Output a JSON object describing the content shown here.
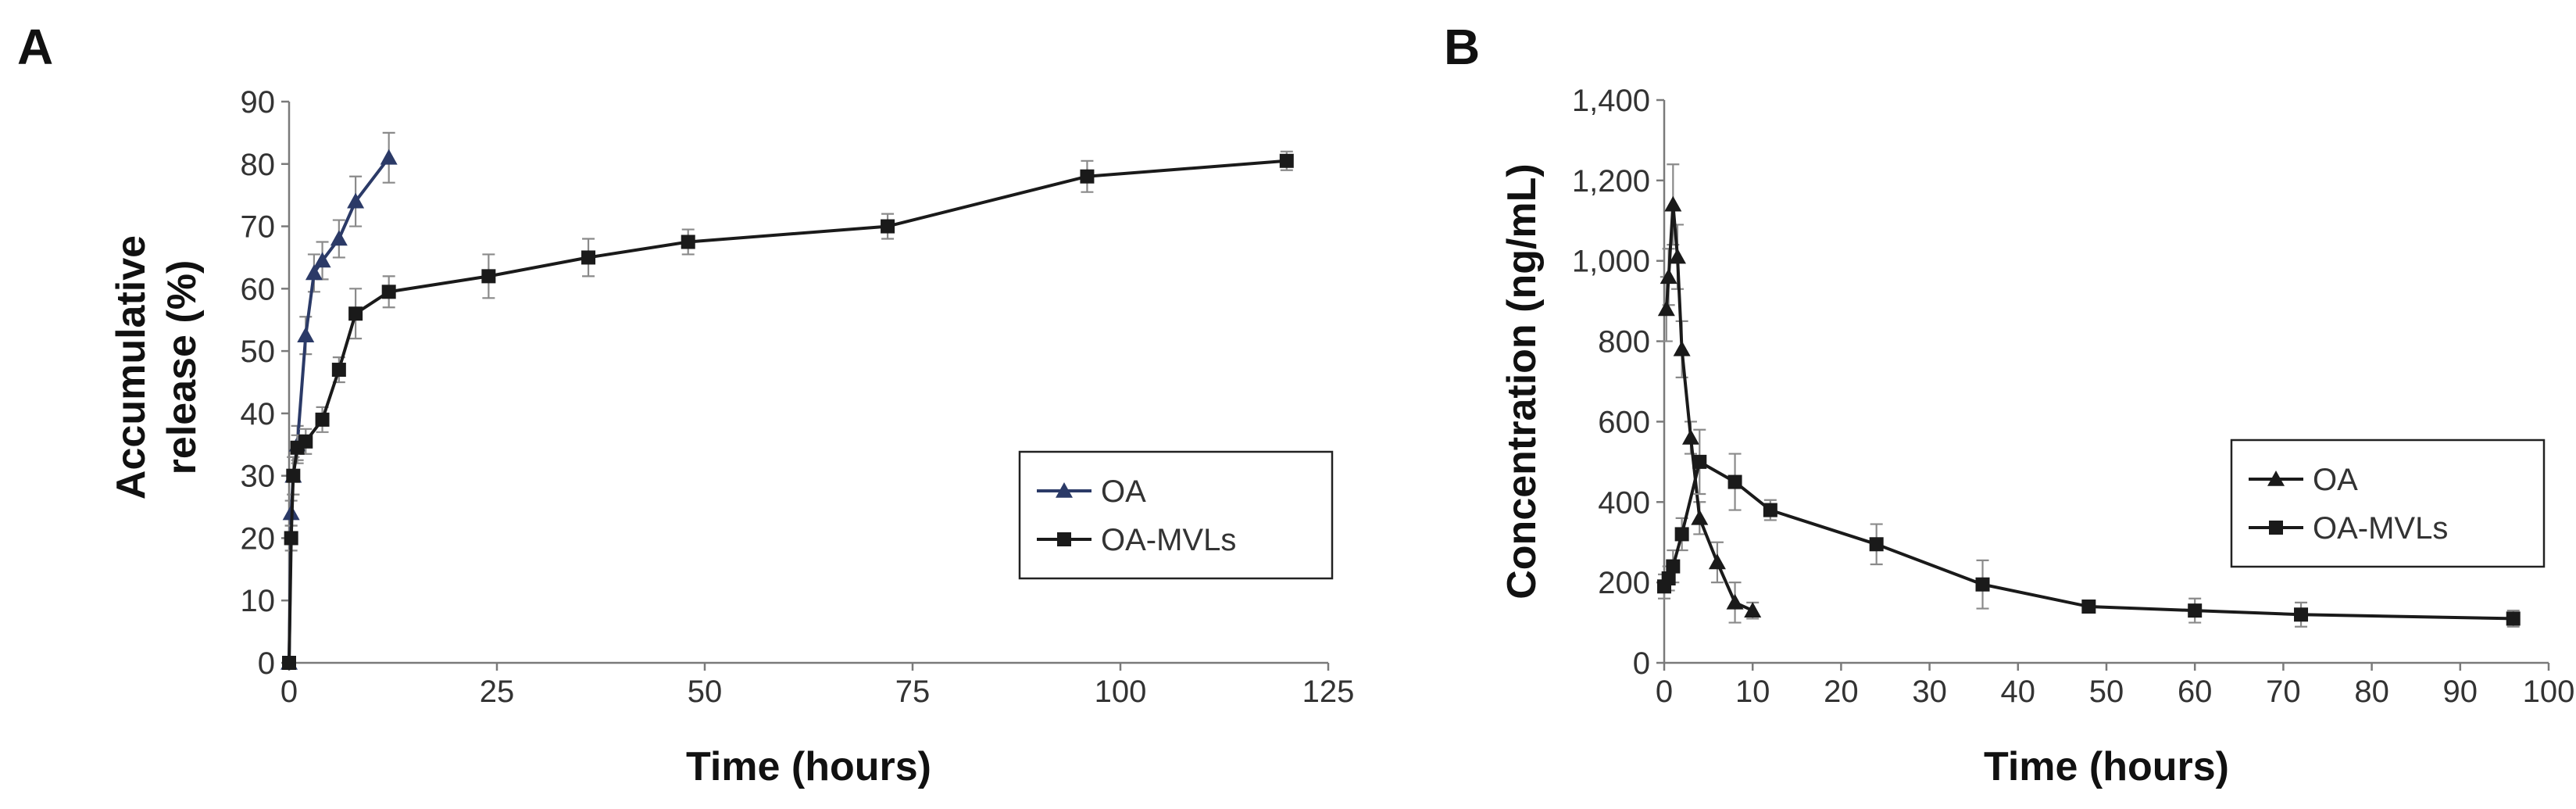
{
  "chart_data": [
    {
      "type": "line",
      "panel_label": "A",
      "xlabel": "Time (hours)",
      "ylabel_lines": [
        "Accumulative",
        "release (%)"
      ],
      "xlim": [
        0,
        125
      ],
      "ylim": [
        0,
        90
      ],
      "xticks": [
        0,
        25,
        50,
        75,
        100,
        125
      ],
      "yticks": [
        0,
        10,
        20,
        30,
        40,
        50,
        60,
        70,
        80,
        90
      ],
      "xtick_labels": [
        "0",
        "25",
        "50",
        "75",
        "100",
        "125"
      ],
      "ytick_labels": [
        "0",
        "10",
        "20",
        "30",
        "40",
        "50",
        "60",
        "70",
        "80",
        "90"
      ],
      "legend_position": "center-right",
      "series": [
        {
          "name": "OA",
          "marker": "triangle",
          "color": "#2b3a67",
          "x": [
            0,
            0.25,
            0.5,
            1,
            2,
            3,
            4,
            6,
            8,
            12
          ],
          "y": [
            0,
            24,
            30,
            35,
            52.5,
            62.5,
            64.5,
            68,
            74,
            81
          ],
          "err": [
            0,
            2,
            3,
            3,
            3,
            3,
            3,
            3,
            4,
            4
          ]
        },
        {
          "name": "OA-MVLs",
          "marker": "square",
          "color": "#1a1a1a",
          "x": [
            0,
            0.25,
            0.5,
            1,
            2,
            4,
            6,
            8,
            12,
            24,
            36,
            48,
            72,
            96,
            120
          ],
          "y": [
            0,
            20,
            30,
            34.5,
            35.5,
            39,
            47,
            56,
            59.5,
            62,
            65,
            67.5,
            70,
            78,
            80.5
          ],
          "err": [
            0,
            2,
            3,
            2,
            2,
            2,
            2,
            4,
            2.5,
            3.5,
            3,
            2,
            2,
            2.5,
            1.5
          ]
        }
      ]
    },
    {
      "type": "line",
      "panel_label": "B",
      "xlabel": "Time (hours)",
      "ylabel": "Concentration (ng/mL)",
      "xlim": [
        0,
        100
      ],
      "ylim": [
        0,
        1400
      ],
      "xticks": [
        0,
        10,
        20,
        30,
        40,
        50,
        60,
        70,
        80,
        90,
        100
      ],
      "yticks": [
        0,
        200,
        400,
        600,
        800,
        1000,
        1200,
        1400
      ],
      "xtick_labels": [
        "0",
        "10",
        "20",
        "30",
        "40",
        "50",
        "60",
        "70",
        "80",
        "90",
        "100"
      ],
      "ytick_labels": [
        "0",
        "200",
        "400",
        "600",
        "800",
        "1,000",
        "1,200",
        "1,400"
      ],
      "legend_position": "center-right",
      "series": [
        {
          "name": "OA",
          "marker": "triangle",
          "color": "#1a1a1a",
          "x": [
            0.25,
            0.5,
            1,
            1.5,
            2,
            3,
            4,
            6,
            8,
            10
          ],
          "y": [
            880,
            960,
            1140,
            1010,
            780,
            560,
            360,
            250,
            150,
            130
          ],
          "err": [
            80,
            70,
            100,
            80,
            70,
            40,
            40,
            50,
            50,
            20
          ]
        },
        {
          "name": "OA-MVLs",
          "marker": "square",
          "color": "#1a1a1a",
          "x": [
            0,
            0.5,
            1,
            2,
            4,
            8,
            12,
            24,
            36,
            48,
            60,
            72,
            96
          ],
          "y": [
            190,
            210,
            240,
            320,
            500,
            450,
            380,
            295,
            195,
            140,
            130,
            120,
            110
          ],
          "err": [
            30,
            30,
            40,
            40,
            80,
            70,
            25,
            50,
            60,
            15,
            30,
            30,
            20
          ]
        }
      ]
    }
  ]
}
